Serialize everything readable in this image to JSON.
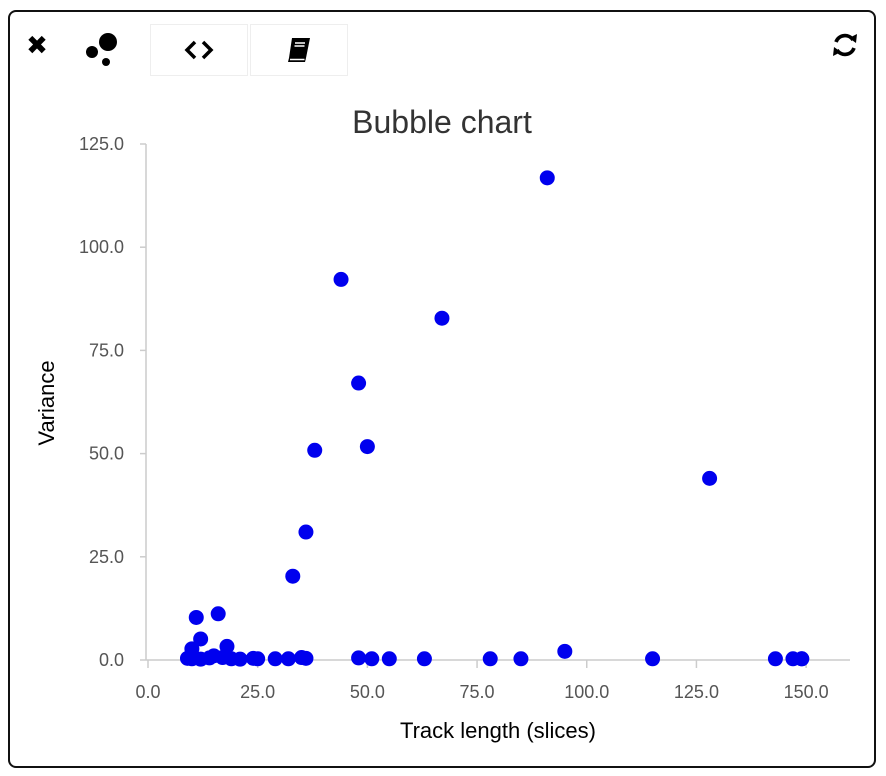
{
  "toolbar": {
    "close_icon": "close-icon",
    "chart_type_icon": "bubble-chart-icon",
    "tabs": [
      {
        "icon": "code-icon"
      },
      {
        "icon": "book-icon"
      }
    ],
    "refresh_icon": "refresh-icon"
  },
  "colors": {
    "point": "#0000ee",
    "axis": "#cccccc",
    "tick_text": "#555555"
  },
  "chart_data": {
    "type": "scatter",
    "title": "Bubble chart",
    "xlabel": "Track length (slices)",
    "ylabel": "Variance",
    "xlim": [
      0,
      160
    ],
    "ylim": [
      0,
      125
    ],
    "xticks": [
      0,
      25,
      50,
      75,
      100,
      125,
      150
    ],
    "yticks": [
      0,
      25,
      50,
      75,
      100,
      125
    ],
    "xtick_labels": [
      "0.0",
      "25.0",
      "50.0",
      "75.0",
      "100.0",
      "125.0",
      "150.0"
    ],
    "ytick_labels": [
      "0.0",
      "25.0",
      "50.0",
      "75.0",
      "100.0",
      "125.0"
    ],
    "grid": false,
    "series": [
      {
        "x": [
          91,
          44,
          67,
          48,
          50,
          38,
          36,
          33,
          128,
          11,
          16,
          12,
          18,
          95,
          10,
          15,
          9,
          10,
          12,
          14,
          17,
          19,
          21,
          24,
          25,
          29,
          32,
          35,
          36,
          48,
          51,
          55,
          63,
          78,
          85,
          115,
          143,
          147,
          149,
          149
        ],
        "y": [
          116.8,
          92.2,
          82.8,
          67.1,
          51.7,
          50.8,
          31.0,
          20.3,
          44.0,
          10.3,
          11.2,
          5.1,
          3.3,
          2.1,
          2.7,
          1.0,
          0.4,
          0.3,
          0.2,
          0.5,
          0.6,
          0.3,
          0.2,
          0.4,
          0.3,
          0.3,
          0.3,
          0.6,
          0.4,
          0.5,
          0.3,
          0.3,
          0.3,
          0.3,
          0.3,
          0.3,
          0.3,
          0.3,
          0.3,
          0.3
        ]
      }
    ]
  }
}
